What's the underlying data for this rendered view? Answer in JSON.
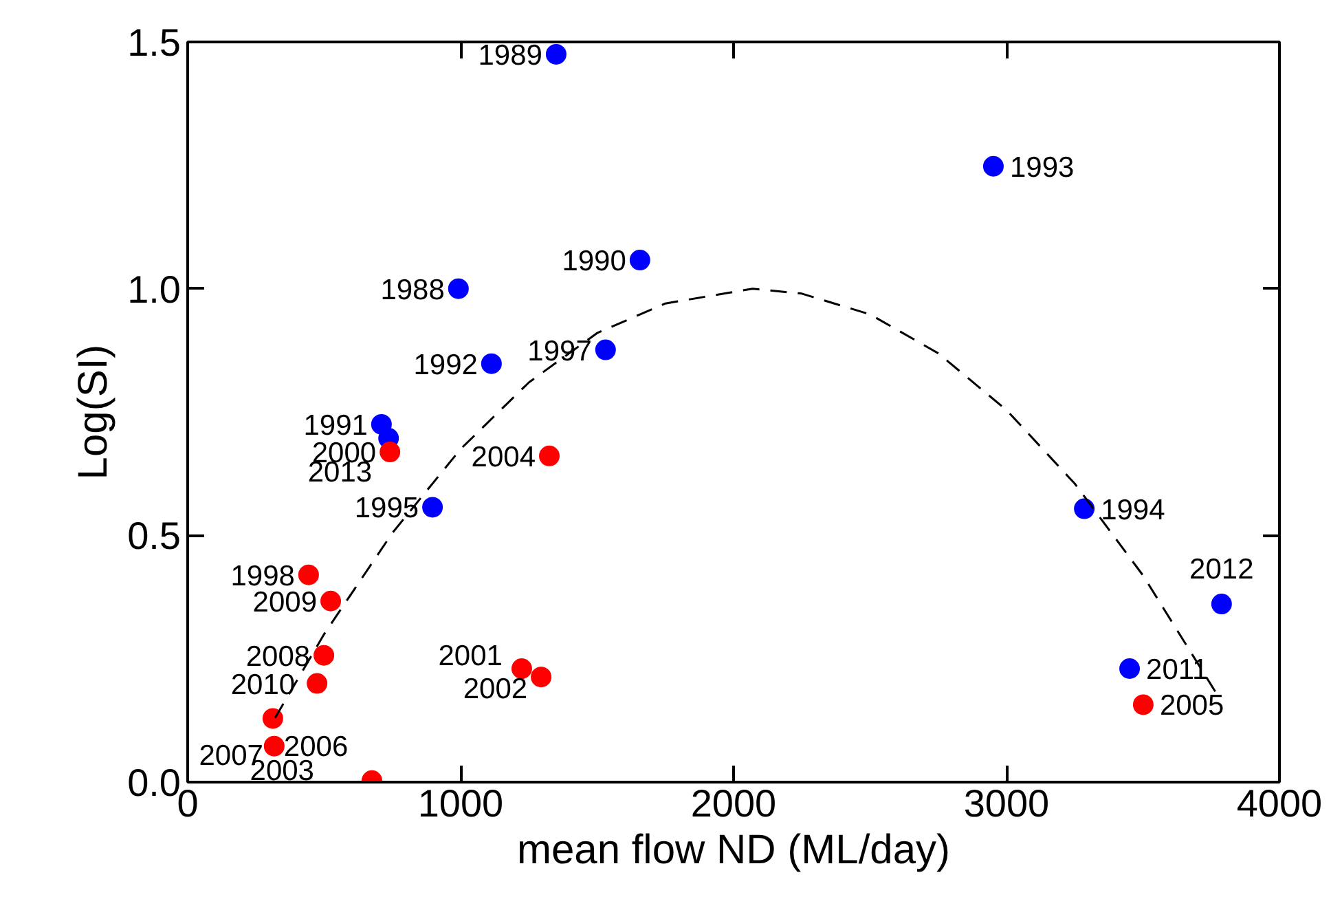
{
  "chart_data": {
    "type": "scatter",
    "xlabel": "mean flow ND (ML/day)",
    "ylabel": "Log(SI)",
    "xlim": [
      0,
      4000
    ],
    "ylim": [
      0,
      1.5
    ],
    "xticks": [
      0,
      1000,
      2000,
      3000,
      4000
    ],
    "yticks": [
      {
        "value": 0,
        "label": "0.0"
      },
      {
        "value": 0.5,
        "label": "0.5"
      },
      {
        "value": 1.0,
        "label": "1.0"
      },
      {
        "value": 1.5,
        "label": "1.5"
      }
    ],
    "grid": false,
    "marker": "circle",
    "series": [
      {
        "color": "#0000ff",
        "x": [
          1350,
          2952,
          1657,
          992,
          1113,
          1531,
          710,
          736,
          897,
          3285,
          3788,
          3451
        ],
        "values": [
          1.475,
          1.248,
          1.058,
          1.0,
          0.848,
          0.876,
          0.725,
          0.697,
          0.557,
          0.554,
          0.361,
          0.23
        ]
      },
      {
        "color": "#ff0000",
        "x": [
          741,
          1325,
          443,
          524,
          499,
          474,
          1224,
          1295,
          3501,
          317,
          312,
          675
        ],
        "values": [
          0.669,
          0.661,
          0.42,
          0.367,
          0.257,
          0.2,
          0.23,
          0.213,
          0.157,
          0.073,
          0.129,
          0.003
        ]
      },
      {
        "type": "line",
        "color": "#000000",
        "line_style": "dashed",
        "marker": "none",
        "x": [
          320,
          500,
          750,
          1000,
          1250,
          1500,
          1750,
          2070,
          2250,
          2500,
          2750,
          3000,
          3250,
          3500,
          3770
        ],
        "values": [
          0.13,
          0.3,
          0.505,
          0.675,
          0.81,
          0.91,
          0.97,
          1.0,
          0.99,
          0.948,
          0.869,
          0.754,
          0.605,
          0.419,
          0.179
        ]
      }
    ],
    "annotations": [
      {
        "text": "1989",
        "x": 1350,
        "y": 1.475
      },
      {
        "text": "1993",
        "x": 2952,
        "y": 1.248
      },
      {
        "text": "1990",
        "x": 1657,
        "y": 1.058
      },
      {
        "text": "1988",
        "x": 992,
        "y": 1.0
      },
      {
        "text": "1992",
        "x": 1113,
        "y": 0.848
      },
      {
        "text": "1997",
        "x": 1531,
        "y": 0.876
      },
      {
        "text": "1991",
        "x": 710,
        "y": 0.725
      },
      {
        "text": "2013",
        "x": 736,
        "y": 0.697
      },
      {
        "text": "1995",
        "x": 897,
        "y": 0.557
      },
      {
        "text": "1994",
        "x": 3285,
        "y": 0.554
      },
      {
        "text": "2012",
        "x": 3788,
        "y": 0.361
      },
      {
        "text": "2011",
        "x": 3451,
        "y": 0.23
      },
      {
        "text": "2000",
        "x": 741,
        "y": 0.669
      },
      {
        "text": "2004",
        "x": 1325,
        "y": 0.661
      },
      {
        "text": "1998",
        "x": 443,
        "y": 0.42
      },
      {
        "text": "2009",
        "x": 524,
        "y": 0.367
      },
      {
        "text": "2008",
        "x": 499,
        "y": 0.257
      },
      {
        "text": "2010",
        "x": 474,
        "y": 0.2
      },
      {
        "text": "2001",
        "x": 1224,
        "y": 0.23
      },
      {
        "text": "2002",
        "x": 1295,
        "y": 0.213
      },
      {
        "text": "2005",
        "x": 3501,
        "y": 0.157
      },
      {
        "text": "2007",
        "x": 317,
        "y": 0.073
      },
      {
        "text": "2006",
        "x": 312,
        "y": 0.129
      },
      {
        "text": "2003",
        "x": 675,
        "y": 0.003
      }
    ]
  }
}
